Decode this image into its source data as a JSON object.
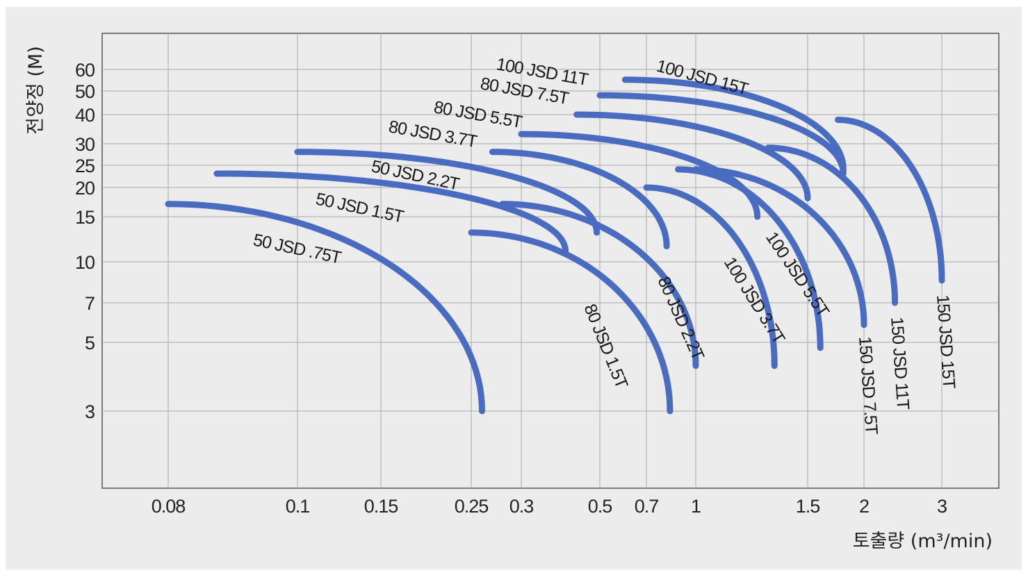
{
  "chart_data": {
    "type": "line",
    "xlabel": "토출량 (m³/min)",
    "ylabel": "전양정 (M)",
    "x_ticks": [
      {
        "value": 0.08,
        "label": "0.08"
      },
      {
        "value": 0.1,
        "label": "0.1"
      },
      {
        "value": 0.15,
        "label": "0.15"
      },
      {
        "value": 0.25,
        "label": "0.25"
      },
      {
        "value": 0.3,
        "label": "0.3"
      },
      {
        "value": 0.5,
        "label": "0.5"
      },
      {
        "value": 0.7,
        "label": "0.7"
      },
      {
        "value": 1,
        "label": "1"
      },
      {
        "value": 1.5,
        "label": "1.5"
      },
      {
        "value": 2,
        "label": "2"
      },
      {
        "value": 3,
        "label": "3"
      }
    ],
    "y_ticks": [
      {
        "value": 3,
        "label": "3"
      },
      {
        "value": 5,
        "label": "5"
      },
      {
        "value": 7,
        "label": "7"
      },
      {
        "value": 10,
        "label": "10"
      },
      {
        "value": 15,
        "label": "15"
      },
      {
        "value": 20,
        "label": "20"
      },
      {
        "value": 25,
        "label": "25"
      },
      {
        "value": 30,
        "label": "30"
      },
      {
        "value": 40,
        "label": "40"
      },
      {
        "value": 50,
        "label": "50"
      },
      {
        "value": 60,
        "label": "60"
      }
    ],
    "grid": true,
    "line_color": "#4a6cc0",
    "series": [
      {
        "name": "50 JSD .75T",
        "max_flow": 0.26,
        "shutoff_head": 17,
        "min_head": 3
      },
      {
        "name": "50 JSD 1.5T",
        "max_flow": 0.4,
        "shutoff_head": 23,
        "min_head": 11
      },
      {
        "name": "50 JSD 2.2T",
        "max_flow": 0.49,
        "shutoff_head": 28,
        "min_head": 13
      },
      {
        "name": "80 JSD 1.5T",
        "max_flow": 0.83,
        "shutoff_head": 13,
        "min_head": 3
      },
      {
        "name": "80 JSD 2.2T",
        "max_flow": 1.0,
        "shutoff_head": 17,
        "min_head": 4.2
      },
      {
        "name": "80 JSD 3.7T",
        "max_flow": 0.81,
        "shutoff_head": 28,
        "min_head": 11.5
      },
      {
        "name": "80 JSD 5.5T",
        "max_flow": 1.25,
        "shutoff_head": 33,
        "min_head": 15
      },
      {
        "name": "80 JSD 7.5T",
        "max_flow": 1.5,
        "shutoff_head": 40,
        "min_head": 18
      },
      {
        "name": "100 JSD 3.7T",
        "max_flow": 1.33,
        "shutoff_head": 20,
        "min_head": 4.2
      },
      {
        "name": "100 JSD 5.5T",
        "max_flow": 1.6,
        "shutoff_head": 24,
        "min_head": 4.8
      },
      {
        "name": "100 JSD 11T",
        "max_flow": 1.8,
        "shutoff_head": 48,
        "min_head": 23
      },
      {
        "name": "100 JSD 15T",
        "max_flow": 1.8,
        "shutoff_head": 55,
        "min_head": 24
      },
      {
        "name": "150 JSD 7.5T",
        "max_flow": 2.0,
        "shutoff_head": 24,
        "min_head": 5.8
      },
      {
        "name": "150 JSD 11T",
        "max_flow": 2.35,
        "shutoff_head": 29,
        "min_head": 7
      },
      {
        "name": "150 JSD 15T",
        "max_flow": 3.0,
        "shutoff_head": 38,
        "min_head": 8.5
      }
    ]
  }
}
